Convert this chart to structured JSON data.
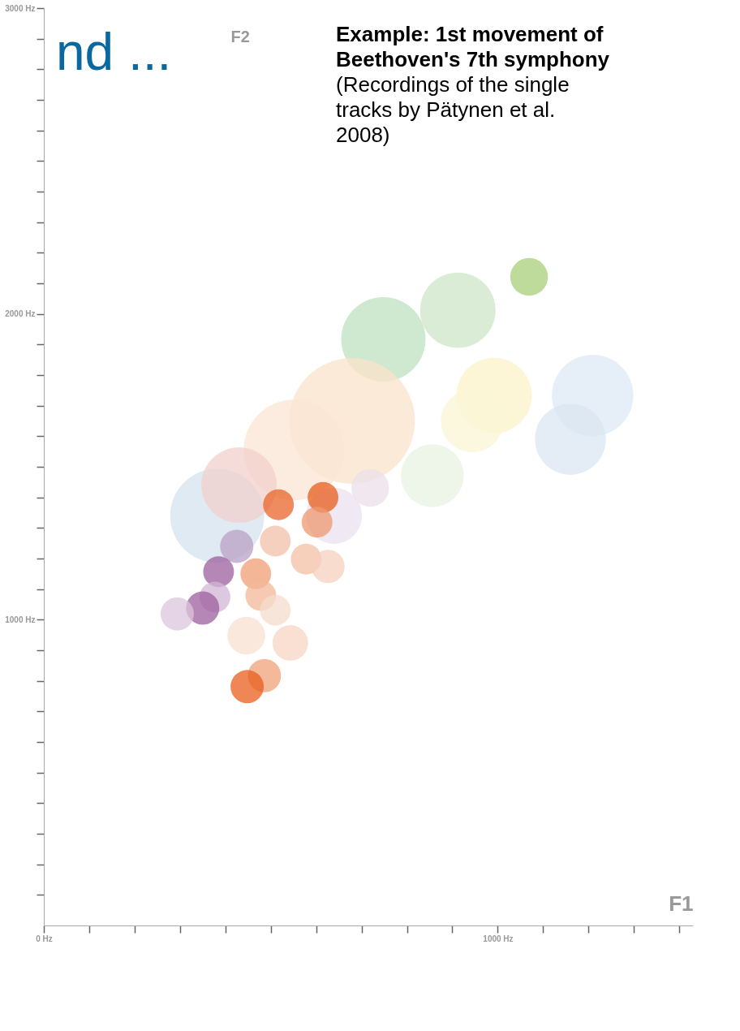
{
  "chart_data": {
    "type": "bubble",
    "title": "nd ...",
    "xlabel": "F1",
    "ylabel": "F2",
    "annotations": [
      "Example: 1st movement of Beethoven's 7th symphony",
      "(Recordings of the single tracks by Pätynen et al. 2008)"
    ],
    "x": [
      1069,
      912,
      748,
      856,
      992,
      944,
      1209,
      1160,
      382,
      679,
      551,
      430,
      719,
      639,
      517,
      615,
      602,
      510,
      578,
      626,
      467,
      478,
      510,
      446,
      543,
      486,
      448,
      425,
      385,
      377,
      350,
      294
    ],
    "values": [
      2121,
      2012,
      1917,
      1471,
      1733,
      1650,
      1733,
      1590,
      1340,
      1650,
      1555,
      1440,
      1431,
      1340,
      1376,
      1400,
      1319,
      1257,
      1198,
      1174,
      1150,
      1079,
      1031,
      948,
      924,
      817,
      781,
      1240,
      1157,
      1074,
      1038,
      1019
    ],
    "sizes": [
      0.09,
      0.36,
      0.45,
      0.25,
      0.36,
      0.25,
      0.42,
      0.32,
      0.56,
      1.0,
      0.64,
      0.36,
      0.09,
      0.2,
      0.06,
      0.06,
      0.06,
      0.06,
      0.06,
      0.07,
      0.06,
      0.06,
      0.06,
      0.09,
      0.08,
      0.07,
      0.07,
      0.07,
      0.06,
      0.06,
      0.07,
      0.07
    ],
    "colors": [
      "#a8cf7a",
      "#cfe6c8",
      "#bfe0c0",
      "#e8f2e2",
      "#fbf3c8",
      "#fbf6d5",
      "#dde8f4",
      "#dbe6f2",
      "#d6e3ef",
      "#fbe3cc",
      "#fbe6d4",
      "#f2d0cc",
      "#ece0ea",
      "#ebe0ee",
      "#e8662a",
      "#e85e1c",
      "#ee9a70",
      "#f2c0a8",
      "#f4c0a4",
      "#f6d0bc",
      "#ef9d74",
      "#f3b898",
      "#f6dccd",
      "#f8e0d0",
      "#f8d6c4",
      "#f0a07a",
      "#e85e1c",
      "#b9a0c6",
      "#9c5f9e",
      "#d2b6d4",
      "#9c5f9e",
      "#dcc6dc"
    ],
    "xlim": [
      0,
      1430
    ],
    "ylim": [
      0,
      3000
    ],
    "xticks": [
      {
        "value": 0,
        "label": "0 Hz"
      },
      {
        "value": 100,
        "label": null
      },
      {
        "value": 200,
        "label": null
      },
      {
        "value": 300,
        "label": null
      },
      {
        "value": 400,
        "label": null
      },
      {
        "value": 500,
        "label": null
      },
      {
        "value": 600,
        "label": null
      },
      {
        "value": 700,
        "label": null
      },
      {
        "value": 800,
        "label": null
      },
      {
        "value": 900,
        "label": null
      },
      {
        "value": 1000,
        "label": "1000 Hz"
      },
      {
        "value": 1100,
        "label": null
      },
      {
        "value": 1200,
        "label": null
      },
      {
        "value": 1300,
        "label": null
      },
      {
        "value": 1400,
        "label": null
      }
    ],
    "yticks": [
      {
        "value": 100,
        "label": null
      },
      {
        "value": 200,
        "label": null
      },
      {
        "value": 300,
        "label": null
      },
      {
        "value": 400,
        "label": null
      },
      {
        "value": 500,
        "label": null
      },
      {
        "value": 600,
        "label": null
      },
      {
        "value": 700,
        "label": null
      },
      {
        "value": 800,
        "label": null
      },
      {
        "value": 900,
        "label": null
      },
      {
        "value": 1000,
        "label": "1000 Hz"
      },
      {
        "value": 1100,
        "label": null
      },
      {
        "value": 1200,
        "label": null
      },
      {
        "value": 1300,
        "label": null
      },
      {
        "value": 1400,
        "label": null
      },
      {
        "value": 1500,
        "label": null
      },
      {
        "value": 1600,
        "label": null
      },
      {
        "value": 1700,
        "label": null
      },
      {
        "value": 1800,
        "label": null
      },
      {
        "value": 1900,
        "label": null
      },
      {
        "value": 2000,
        "label": "2000 Hz"
      },
      {
        "value": 2100,
        "label": null
      },
      {
        "value": 2200,
        "label": null
      },
      {
        "value": 2300,
        "label": null
      },
      {
        "value": 2400,
        "label": null
      },
      {
        "value": 2500,
        "label": null
      },
      {
        "value": 2600,
        "label": null
      },
      {
        "value": 2700,
        "label": null
      },
      {
        "value": 2800,
        "label": null
      },
      {
        "value": 2900,
        "label": null
      },
      {
        "value": 3000,
        "label": "3000 Hz"
      }
    ],
    "grid": false,
    "legend": false
  }
}
